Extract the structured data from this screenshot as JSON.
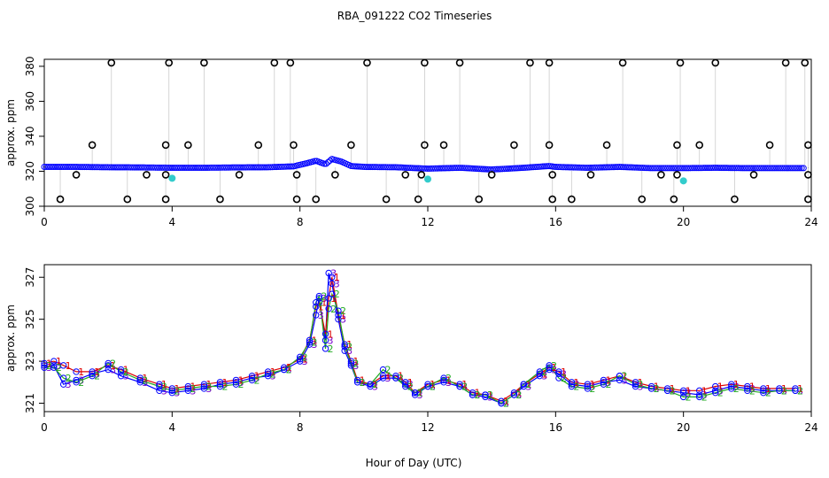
{
  "title": "RBA_091222  CO2 Timeseries",
  "xlabel": "Hour of Day (UTC)",
  "colors": {
    "black": "#000000",
    "cyan": "#33cccc",
    "blue": "#0000ff",
    "red": "#dd0000",
    "green": "#22aa22",
    "purple": "#7700cc",
    "gray": "#999999"
  },
  "chart_data": [
    {
      "type": "scatter",
      "ylabel": "approx. ppm",
      "xlim": [
        0,
        24
      ],
      "ylim": [
        300,
        384
      ],
      "x_ticks": [
        "0",
        "4",
        "8",
        "12",
        "16",
        "20",
        "24"
      ],
      "y_ticks": [
        "300",
        "320",
        "340",
        "360",
        "380"
      ],
      "x_tick_values": [
        0,
        4,
        8,
        12,
        16,
        20,
        24
      ],
      "y_tick_values": [
        300,
        320,
        340,
        360,
        380
      ],
      "baseline": [
        [
          0.0,
          322.5
        ],
        [
          1.0,
          322.5
        ],
        [
          2.0,
          322.3
        ],
        [
          3.0,
          322.2
        ],
        [
          4.0,
          322.0
        ],
        [
          5.0,
          322.0
        ],
        [
          6.0,
          322.2
        ],
        [
          7.0,
          322.3
        ],
        [
          7.8,
          322.8
        ],
        [
          8.2,
          324.5
        ],
        [
          8.5,
          326.0
        ],
        [
          8.8,
          324.0
        ],
        [
          9.0,
          327.0
        ],
        [
          9.3,
          325.5
        ],
        [
          9.6,
          323.0
        ],
        [
          10.0,
          322.5
        ],
        [
          11.0,
          322.3
        ],
        [
          12.0,
          321.5
        ],
        [
          13.0,
          322.0
        ],
        [
          14.0,
          321.0
        ],
        [
          15.0,
          322.0
        ],
        [
          15.8,
          323.0
        ],
        [
          16.0,
          322.5
        ],
        [
          17.0,
          322.0
        ],
        [
          18.0,
          322.5
        ],
        [
          19.0,
          321.8
        ],
        [
          20.0,
          321.8
        ],
        [
          21.0,
          322.0
        ],
        [
          22.0,
          321.8
        ],
        [
          23.0,
          321.8
        ],
        [
          23.8,
          321.8
        ]
      ],
      "high_points": [
        [
          2.1,
          382
        ],
        [
          3.9,
          382
        ],
        [
          5.0,
          382
        ],
        [
          7.2,
          382
        ],
        [
          7.7,
          382
        ],
        [
          10.1,
          382
        ],
        [
          11.9,
          382
        ],
        [
          13.0,
          382
        ],
        [
          15.2,
          382
        ],
        [
          15.8,
          382
        ],
        [
          18.1,
          382
        ],
        [
          19.9,
          382
        ],
        [
          21.0,
          382
        ],
        [
          23.2,
          382
        ],
        [
          23.8,
          382
        ]
      ],
      "mid_points": [
        [
          1.5,
          335
        ],
        [
          3.8,
          335
        ],
        [
          4.5,
          335
        ],
        [
          6.7,
          335
        ],
        [
          7.8,
          335
        ],
        [
          9.6,
          335
        ],
        [
          11.9,
          335
        ],
        [
          12.5,
          335
        ],
        [
          14.7,
          335
        ],
        [
          15.8,
          335
        ],
        [
          17.6,
          335
        ],
        [
          19.8,
          335
        ],
        [
          20.5,
          335
        ],
        [
          22.7,
          335
        ],
        [
          23.9,
          335
        ]
      ],
      "low_points": [
        [
          0.5,
          304
        ],
        [
          2.6,
          304
        ],
        [
          3.8,
          304
        ],
        [
          5.5,
          304
        ],
        [
          7.9,
          304
        ],
        [
          8.5,
          304
        ],
        [
          10.7,
          304
        ],
        [
          11.7,
          304
        ],
        [
          13.6,
          304
        ],
        [
          15.9,
          304
        ],
        [
          16.5,
          304
        ],
        [
          18.7,
          304
        ],
        [
          19.7,
          304
        ],
        [
          21.6,
          304
        ],
        [
          23.9,
          304
        ]
      ],
      "dip_points": [
        [
          1.0,
          318
        ],
        [
          3.2,
          318
        ],
        [
          3.8,
          318
        ],
        [
          6.1,
          318
        ],
        [
          7.9,
          318
        ],
        [
          9.1,
          318
        ],
        [
          11.3,
          318
        ],
        [
          11.8,
          318
        ],
        [
          14.0,
          318
        ],
        [
          15.9,
          318
        ],
        [
          17.1,
          318
        ],
        [
          19.3,
          318
        ],
        [
          19.8,
          318
        ],
        [
          22.2,
          318
        ],
        [
          23.9,
          318
        ]
      ],
      "cyan_points": [
        [
          4.0,
          316
        ],
        [
          12.0,
          315.5
        ],
        [
          20.0,
          314.5
        ]
      ]
    },
    {
      "type": "line",
      "ylabel": "approx. ppm",
      "xlim": [
        0,
        24
      ],
      "ylim": [
        320.6,
        327.6
      ],
      "x_ticks": [
        "0",
        "4",
        "8",
        "12",
        "16",
        "20",
        "24"
      ],
      "y_ticks": [
        "321",
        "323",
        "325",
        "327"
      ],
      "x_tick_values": [
        0,
        4,
        8,
        12,
        16,
        20,
        24
      ],
      "y_tick_values": [
        321,
        323,
        325,
        327
      ],
      "series": [
        {
          "marker": "3",
          "values": [
            [
              0.0,
              322.7
            ],
            [
              0.3,
              322.8
            ],
            [
              0.6,
              321.9
            ],
            [
              1.0,
              322.1
            ],
            [
              1.5,
              322.4
            ],
            [
              2.0,
              322.6
            ],
            [
              2.4,
              322.3
            ],
            [
              3.0,
              322.0
            ],
            [
              3.6,
              321.6
            ],
            [
              4.0,
              321.5
            ],
            [
              4.5,
              321.6
            ],
            [
              5.0,
              321.7
            ],
            [
              5.5,
              321.9
            ],
            [
              6.0,
              322.0
            ],
            [
              6.5,
              322.2
            ],
            [
              7.0,
              322.3
            ],
            [
              7.5,
              322.6
            ],
            [
              8.0,
              323.0
            ],
            [
              8.3,
              323.8
            ],
            [
              8.5,
              325.2
            ],
            [
              8.6,
              326.0
            ],
            [
              8.8,
              324.0
            ],
            [
              8.9,
              327.2
            ],
            [
              9.0,
              326.7
            ],
            [
              9.2,
              325.0
            ],
            [
              9.4,
              323.5
            ],
            [
              9.6,
              322.8
            ],
            [
              9.8,
              322.0
            ],
            [
              10.2,
              321.8
            ],
            [
              10.6,
              322.2
            ],
            [
              11.0,
              322.2
            ],
            [
              11.3,
              321.9
            ],
            [
              11.6,
              321.4
            ],
            [
              12.0,
              321.8
            ],
            [
              12.5,
              322.0
            ],
            [
              13.0,
              321.8
            ],
            [
              13.4,
              321.4
            ],
            [
              13.8,
              321.3
            ],
            [
              14.3,
              321.0
            ],
            [
              14.7,
              321.4
            ],
            [
              15.0,
              321.8
            ],
            [
              15.5,
              322.3
            ],
            [
              15.8,
              322.6
            ],
            [
              16.1,
              322.4
            ],
            [
              16.5,
              321.9
            ],
            [
              17.0,
              321.8
            ],
            [
              17.5,
              322.0
            ],
            [
              18.0,
              322.1
            ],
            [
              18.5,
              321.8
            ],
            [
              19.0,
              321.7
            ],
            [
              19.5,
              321.6
            ],
            [
              20.0,
              321.5
            ],
            [
              20.5,
              321.4
            ],
            [
              21.0,
              321.6
            ],
            [
              21.5,
              321.8
            ],
            [
              22.0,
              321.7
            ],
            [
              22.5,
              321.6
            ],
            [
              23.0,
              321.6
            ],
            [
              23.5,
              321.6
            ]
          ]
        },
        {
          "marker": "1",
          "values": [
            [
              0.0,
              322.9
            ],
            [
              0.3,
              323.0
            ],
            [
              0.6,
              322.8
            ],
            [
              1.0,
              322.5
            ],
            [
              1.5,
              322.5
            ],
            [
              2.0,
              322.8
            ],
            [
              2.4,
              322.6
            ],
            [
              3.0,
              322.2
            ],
            [
              3.6,
              321.9
            ],
            [
              4.0,
              321.7
            ],
            [
              4.5,
              321.8
            ],
            [
              5.0,
              321.9
            ],
            [
              5.5,
              322.0
            ],
            [
              6.0,
              322.1
            ],
            [
              6.5,
              322.3
            ],
            [
              7.0,
              322.5
            ],
            [
              7.5,
              322.7
            ],
            [
              8.0,
              323.1
            ],
            [
              8.3,
              324.0
            ],
            [
              8.5,
              325.6
            ],
            [
              8.6,
              325.8
            ],
            [
              8.8,
              324.3
            ],
            [
              8.9,
              326.0
            ],
            [
              9.0,
              327.0
            ],
            [
              9.2,
              325.2
            ],
            [
              9.4,
              323.8
            ],
            [
              9.6,
              323.0
            ],
            [
              9.8,
              322.1
            ],
            [
              10.2,
              321.9
            ],
            [
              10.6,
              322.3
            ],
            [
              11.0,
              322.3
            ],
            [
              11.3,
              322.0
            ],
            [
              11.6,
              321.5
            ],
            [
              12.0,
              321.9
            ],
            [
              12.5,
              322.1
            ],
            [
              13.0,
              321.9
            ],
            [
              13.4,
              321.5
            ],
            [
              13.8,
              321.4
            ],
            [
              14.3,
              321.1
            ],
            [
              14.7,
              321.5
            ],
            [
              15.0,
              321.9
            ],
            [
              15.5,
              322.4
            ],
            [
              15.8,
              322.7
            ],
            [
              16.1,
              322.5
            ],
            [
              16.5,
              322.0
            ],
            [
              17.0,
              321.9
            ],
            [
              17.5,
              322.1
            ],
            [
              18.0,
              322.3
            ],
            [
              18.5,
              322.0
            ],
            [
              19.0,
              321.8
            ],
            [
              19.5,
              321.7
            ],
            [
              20.0,
              321.6
            ],
            [
              20.5,
              321.6
            ],
            [
              21.0,
              321.8
            ],
            [
              21.5,
              321.9
            ],
            [
              22.0,
              321.8
            ],
            [
              22.5,
              321.7
            ],
            [
              23.0,
              321.7
            ],
            [
              23.5,
              321.7
            ]
          ]
        },
        {
          "marker": "2",
          "values": [
            [
              0.0,
              322.8
            ],
            [
              0.3,
              322.7
            ],
            [
              0.6,
              322.2
            ],
            [
              1.0,
              322.0
            ],
            [
              1.5,
              322.3
            ],
            [
              2.0,
              322.9
            ],
            [
              2.4,
              322.5
            ],
            [
              3.0,
              322.1
            ],
            [
              3.6,
              321.8
            ],
            [
              4.0,
              321.6
            ],
            [
              4.5,
              321.7
            ],
            [
              5.0,
              321.8
            ],
            [
              5.5,
              321.8
            ],
            [
              6.0,
              321.9
            ],
            [
              6.5,
              322.1
            ],
            [
              7.0,
              322.4
            ],
            [
              7.5,
              322.6
            ],
            [
              8.0,
              323.2
            ],
            [
              8.3,
              323.9
            ],
            [
              8.5,
              325.8
            ],
            [
              8.6,
              326.1
            ],
            [
              8.8,
              323.6
            ],
            [
              8.9,
              325.5
            ],
            [
              9.0,
              326.2
            ],
            [
              9.2,
              325.4
            ],
            [
              9.4,
              323.7
            ],
            [
              9.6,
              322.9
            ],
            [
              9.8,
              322.0
            ],
            [
              10.2,
              321.9
            ],
            [
              10.6,
              322.6
            ],
            [
              11.0,
              322.2
            ],
            [
              11.3,
              321.8
            ],
            [
              11.6,
              321.5
            ],
            [
              12.0,
              321.8
            ],
            [
              12.5,
              322.2
            ],
            [
              13.0,
              321.8
            ],
            [
              13.4,
              321.4
            ],
            [
              13.8,
              321.4
            ],
            [
              14.3,
              321.0
            ],
            [
              14.7,
              321.4
            ],
            [
              15.0,
              321.9
            ],
            [
              15.5,
              322.5
            ],
            [
              15.8,
              322.8
            ],
            [
              16.1,
              322.2
            ],
            [
              16.5,
              321.8
            ],
            [
              17.0,
              321.7
            ],
            [
              17.5,
              321.9
            ],
            [
              18.0,
              322.3
            ],
            [
              18.5,
              321.9
            ],
            [
              19.0,
              321.7
            ],
            [
              19.5,
              321.6
            ],
            [
              20.0,
              321.3
            ],
            [
              20.5,
              321.3
            ],
            [
              21.0,
              321.5
            ],
            [
              21.5,
              321.7
            ],
            [
              22.0,
              321.6
            ],
            [
              22.5,
              321.5
            ],
            [
              23.0,
              321.6
            ],
            [
              23.5,
              321.6
            ]
          ]
        }
      ]
    }
  ]
}
